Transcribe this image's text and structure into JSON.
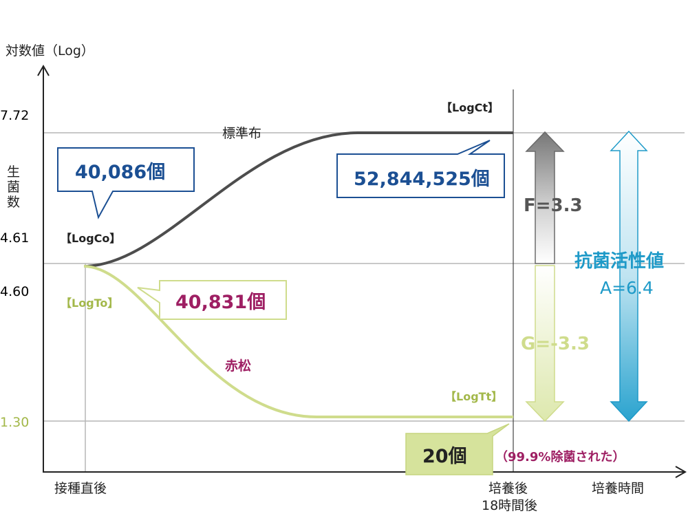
{
  "chart_data": {
    "type": "line",
    "ylabel": "対数値（Log）",
    "ylabel_vertical": "生菌数",
    "yticks": [
      {
        "label": "7.72",
        "value": 7.72,
        "color": "#222222"
      },
      {
        "label": "4.61",
        "value": 4.61,
        "color": "#222222"
      },
      {
        "label": "4.60",
        "value": 4.6,
        "color": "#222222"
      },
      {
        "label": "1.30",
        "value": 1.3,
        "color": "#a3b84a"
      }
    ],
    "xticks": [
      {
        "label": "接種直後",
        "x": 0
      },
      {
        "label": "培養後\n18時間後",
        "x": 18
      }
    ],
    "xlabel": "培養時間",
    "series": [
      {
        "name": "標準布",
        "color": "#4d4d4d",
        "start": 4.61,
        "end": 7.72,
        "start_label": "【LogCo】",
        "end_label": "【LogCt】",
        "start_count": "40,086個",
        "end_count": "52,844,525個",
        "count_color": "#1b4f93"
      },
      {
        "name": "赤松",
        "color": "#cfdc8c",
        "start": 4.6,
        "end": 1.3,
        "start_label": "【LogTo】",
        "end_label": "【LogTt】",
        "start_count": "40,831個",
        "end_count": "20個",
        "count_color": "#9e1f63"
      }
    ],
    "annotations": {
      "f_value": "F=3.3",
      "g_value": "G=-3.3",
      "activity_title": "抗菌活性値",
      "activity_value": "A=6.4",
      "removal_note": "（99.9%除菌された）"
    },
    "colors": {
      "standard": "#4d4d4d",
      "akamatsu": "#cfdc8c",
      "akamatsu_text": "#a3b84a",
      "blue_text": "#1b4f93",
      "magenta_text": "#9e1f63",
      "activity": "#1e9ac8",
      "grid": "#b5b5b5"
    }
  }
}
